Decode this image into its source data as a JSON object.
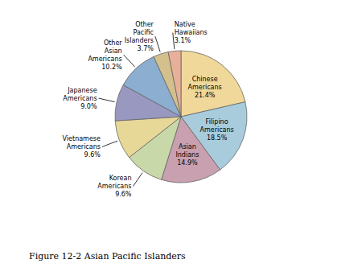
{
  "chart_data": {
    "type": "pie",
    "title": "Figure 12-2 Asian Pacific Islanders",
    "categories": [
      "Chinese\nAmericans",
      "Filipino\nAmericans",
      "Asian\nIndians",
      "Korean\nAmericans",
      "Vietnamese\nAmericans",
      "Japanese\nAmericans",
      "Other\nAsian\nAmericans",
      "Other\nPacific\nIslanders",
      "Native\nHawaiians"
    ],
    "values": [
      21.4,
      18.5,
      14.9,
      9.6,
      9.6,
      9.0,
      10.2,
      3.7,
      3.1
    ],
    "value_labels": [
      "21.4%",
      "18.5%",
      "14.9%",
      "9.6%",
      "9.6%",
      "9.0%",
      "10.2%",
      "3.7%",
      "3.1%"
    ],
    "colors": [
      "#F0D89A",
      "#A8CCDC",
      "#C8A0B0",
      "#C8D8A8",
      "#E8D898",
      "#9898C0",
      "#8CAED0",
      "#D4C08C",
      "#E8B098"
    ],
    "data_labels": true
  }
}
